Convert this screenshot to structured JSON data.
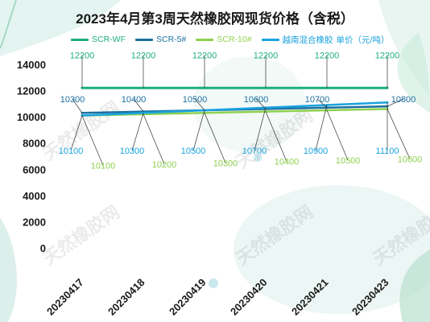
{
  "chart_data": {
    "type": "line",
    "title": "2023年4月第3周天然橡胶网现货价格（含税）",
    "categories": [
      "20230417",
      "20230418",
      "20230419",
      "20230420",
      "20230421",
      "20230423"
    ],
    "ylim": [
      0,
      14000
    ],
    "y_ticks": [
      "14000",
      "12000",
      "10000",
      "8000",
      "6000",
      "4000",
      "2000",
      "0"
    ],
    "grid": false,
    "legend_position": "top",
    "unit_label": "单价（元/吨）",
    "series": [
      {
        "name": "SCR-WF",
        "color": "#1db07a",
        "values": [
          12200,
          12200,
          12200,
          12200,
          12200,
          12200
        ]
      },
      {
        "name": "SCR-5#",
        "color": "#1a6fa0",
        "values": [
          10300,
          10400,
          10500,
          10600,
          10700,
          10800
        ]
      },
      {
        "name": "SCR-10#",
        "color": "#8fd14f",
        "values": [
          10100,
          10200,
          10300,
          10400,
          10500,
          10600
        ]
      },
      {
        "name": "越南混合橡胶",
        "color": "#1aa3df",
        "values": [
          10100,
          10300,
          10500,
          10700,
          10900,
          11100
        ]
      }
    ],
    "data_labels": [
      {
        "series": 0,
        "labels": [
          "12200",
          "12200",
          "12200",
          "12200",
          "12200",
          "12200"
        ]
      },
      {
        "series": 1,
        "labels": [
          "10300",
          "10400",
          "10500",
          "10600",
          "10700",
          "10800"
        ]
      },
      {
        "series": 2,
        "labels": [
          "10100",
          "10200",
          "10300",
          "10400",
          "10500",
          "10600"
        ]
      },
      {
        "series": 3,
        "labels": [
          "10100",
          "10300",
          "10500",
          "10700",
          "10900",
          "11100"
        ]
      }
    ]
  },
  "watermark": "天然橡胶网"
}
